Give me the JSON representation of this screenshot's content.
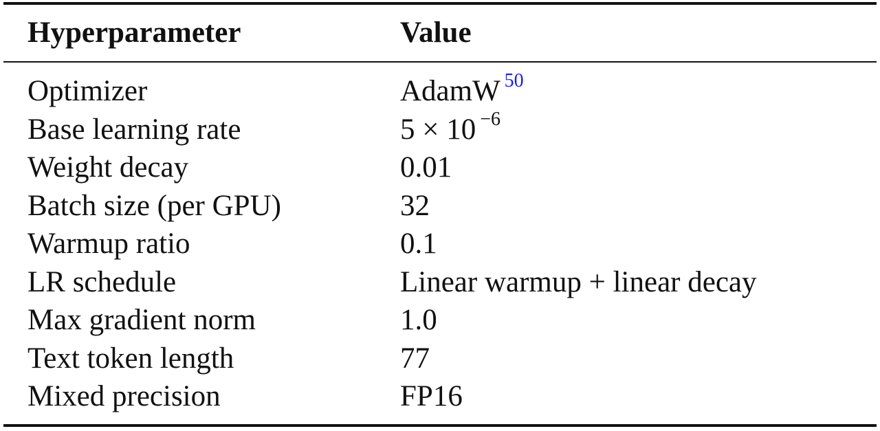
{
  "table": {
    "header": [
      "Hyperparameter",
      "Value"
    ],
    "rows": [
      [
        "Optimizer",
        {
          "text": "AdamW",
          "sup": "50"
        }
      ],
      [
        "Base learning rate",
        {
          "text": "5 × 10",
          "sup": "−6"
        }
      ],
      [
        "Weight decay",
        "0.01"
      ],
      [
        "Batch size (per GPU)",
        "32"
      ],
      [
        "Warmup ratio",
        "0.1"
      ],
      [
        "LR schedule",
        "Linear warmup + linear decay"
      ],
      [
        "Max gradient norm",
        "1.0"
      ],
      [
        "Text token length",
        "77"
      ],
      [
        "Mixed precision",
        "FP16"
      ]
    ]
  }
}
